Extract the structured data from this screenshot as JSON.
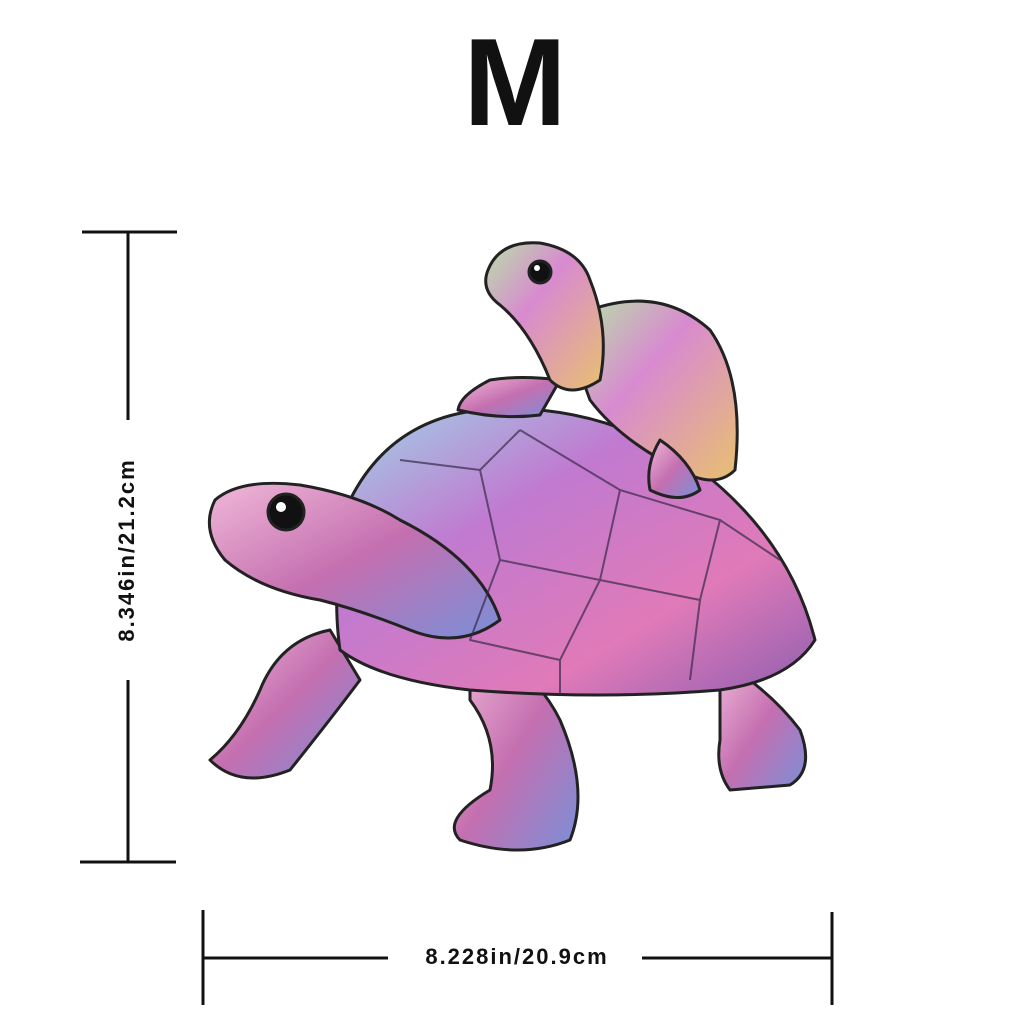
{
  "title": "M",
  "height_label": "8.346in/21.2cm",
  "width_label": "8.228in/20.9cm"
}
